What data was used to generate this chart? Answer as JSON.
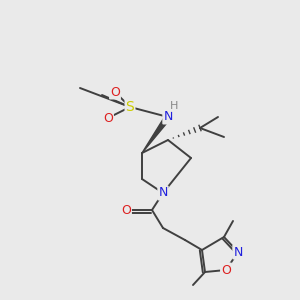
{
  "background_color": "#eaeaea",
  "atom_colors": {
    "C": "#404040",
    "N": "#2020dd",
    "O": "#dd2020",
    "S": "#cccc00",
    "H": "#888888"
  },
  "line_color": "#404040",
  "line_width": 1.4,
  "figsize": [
    3.0,
    3.0
  ],
  "dpi": 100
}
